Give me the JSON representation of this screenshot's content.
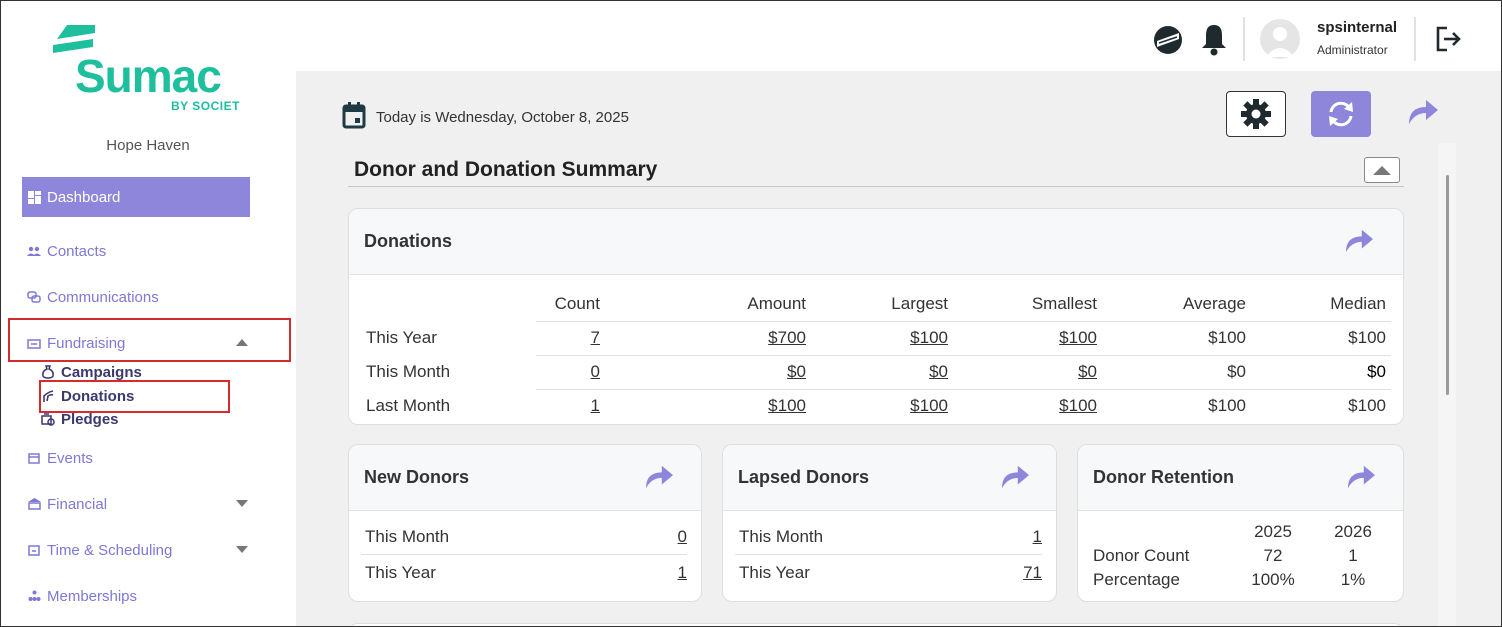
{
  "sidebar": {
    "logo_word": "Sumac",
    "logo_sub": "BY SOCIET",
    "org_name": "Hope Haven",
    "items": [
      {
        "label": "Dashboard"
      },
      {
        "label": "Contacts"
      },
      {
        "label": "Communications"
      },
      {
        "label": "Fundraising"
      },
      {
        "label": "Events"
      },
      {
        "label": "Financial"
      },
      {
        "label": "Time & Scheduling"
      },
      {
        "label": "Memberships"
      }
    ],
    "sub_items": [
      {
        "label": "Campaigns"
      },
      {
        "label": "Donations"
      },
      {
        "label": "Pledges"
      }
    ]
  },
  "topbar": {
    "user_name": "spsinternal",
    "user_role": "Administrator",
    "icons": [
      "globe-flag-icon",
      "bell-icon",
      "avatar",
      "logout-icon"
    ]
  },
  "main": {
    "date_text": "Today is Wednesday, October 8, 2025",
    "section_title": "Donor and Donation Summary",
    "colors": {
      "accent": "#8e86da",
      "brand": "#1dbf9d"
    }
  },
  "donations": {
    "title": "Donations",
    "columns": [
      "Count",
      "Amount",
      "Largest",
      "Smallest",
      "Average",
      "Median"
    ],
    "rows": [
      {
        "label": "This Year",
        "values": [
          "7",
          "$700",
          "$100",
          "$100",
          "$100",
          "$100"
        ]
      },
      {
        "label": "This Month",
        "values": [
          "0",
          "$0",
          "$0",
          "$0",
          "$0",
          "$0"
        ]
      },
      {
        "label": "Last Month",
        "values": [
          "1",
          "$100",
          "$100",
          "$100",
          "$100",
          "$100"
        ]
      }
    ]
  },
  "new_donors": {
    "title": "New Donors",
    "rows": [
      {
        "label": "This Month",
        "value": "0"
      },
      {
        "label": "This Year",
        "value": "1"
      }
    ]
  },
  "lapsed_donors": {
    "title": "Lapsed Donors",
    "rows": [
      {
        "label": "This Month",
        "value": "1"
      },
      {
        "label": "This Year",
        "value": "71"
      }
    ]
  },
  "donor_retention": {
    "title": "Donor Retention",
    "years": [
      "2025",
      "2026"
    ],
    "rows": [
      {
        "label": "Donor Count",
        "values": [
          "72",
          "1"
        ]
      },
      {
        "label": "Percentage",
        "values": [
          "100%",
          "1%"
        ]
      }
    ]
  }
}
